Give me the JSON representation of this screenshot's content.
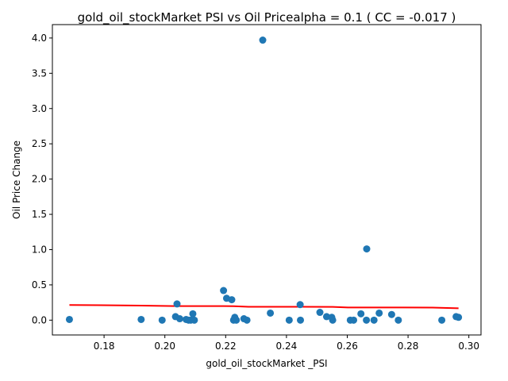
{
  "chart_data": {
    "type": "scatter",
    "title": "gold_oil_stockMarket  PSI vs Oil Pricealpha = 0.1 ( CC = -0.017 )",
    "xlabel": "gold_oil_stockMarket _PSI",
    "ylabel": "Oil Price Change",
    "xlim": [
      0.163,
      0.304
    ],
    "ylim": [
      -0.21,
      4.19
    ],
    "xticks": [
      0.18,
      0.2,
      0.22,
      0.24,
      0.26,
      0.28,
      0.3
    ],
    "xtick_labels": [
      "0.18",
      "0.20",
      "0.22",
      "0.24",
      "0.26",
      "0.28",
      "0.30"
    ],
    "yticks": [
      0.0,
      0.5,
      1.0,
      1.5,
      2.0,
      2.5,
      3.0,
      3.5,
      4.0
    ],
    "ytick_labels": [
      "0.0",
      "0.5",
      "1.0",
      "1.5",
      "2.0",
      "2.5",
      "3.0",
      "3.5",
      "4.0"
    ],
    "grid": false,
    "point_color": "#1f77b4",
    "fit_line_color": "#ff0000",
    "points": [
      {
        "x": 0.1686,
        "y": 0.01
      },
      {
        "x": 0.1922,
        "y": 0.01
      },
      {
        "x": 0.1991,
        "y": 0.0
      },
      {
        "x": 0.2035,
        "y": 0.05
      },
      {
        "x": 0.204,
        "y": 0.23
      },
      {
        "x": 0.2049,
        "y": 0.02
      },
      {
        "x": 0.207,
        "y": 0.01
      },
      {
        "x": 0.2078,
        "y": 0.0
      },
      {
        "x": 0.2085,
        "y": 0.0
      },
      {
        "x": 0.2092,
        "y": 0.09
      },
      {
        "x": 0.2097,
        "y": 0.0
      },
      {
        "x": 0.2193,
        "y": 0.42
      },
      {
        "x": 0.2203,
        "y": 0.31
      },
      {
        "x": 0.222,
        "y": 0.29
      },
      {
        "x": 0.2226,
        "y": 0.0
      },
      {
        "x": 0.223,
        "y": 0.04
      },
      {
        "x": 0.2235,
        "y": 0.0
      },
      {
        "x": 0.226,
        "y": 0.02
      },
      {
        "x": 0.227,
        "y": 0.0
      },
      {
        "x": 0.2322,
        "y": 3.97
      },
      {
        "x": 0.2347,
        "y": 0.1
      },
      {
        "x": 0.2409,
        "y": 0.0
      },
      {
        "x": 0.2445,
        "y": 0.22
      },
      {
        "x": 0.2446,
        "y": 0.0
      },
      {
        "x": 0.251,
        "y": 0.11
      },
      {
        "x": 0.2532,
        "y": 0.05
      },
      {
        "x": 0.2549,
        "y": 0.04
      },
      {
        "x": 0.2552,
        "y": 0.0
      },
      {
        "x": 0.261,
        "y": 0.0
      },
      {
        "x": 0.2621,
        "y": 0.0
      },
      {
        "x": 0.2645,
        "y": 0.09
      },
      {
        "x": 0.2664,
        "y": 1.01
      },
      {
        "x": 0.2663,
        "y": 0.0
      },
      {
        "x": 0.2688,
        "y": 0.0
      },
      {
        "x": 0.2705,
        "y": 0.1
      },
      {
        "x": 0.2746,
        "y": 0.08
      },
      {
        "x": 0.2768,
        "y": 0.0
      },
      {
        "x": 0.2911,
        "y": 0.0
      },
      {
        "x": 0.2958,
        "y": 0.05
      },
      {
        "x": 0.2966,
        "y": 0.04
      }
    ],
    "fit_line": [
      {
        "x": 0.1686,
        "y": 0.215
      },
      {
        "x": 0.1922,
        "y": 0.207
      },
      {
        "x": 0.2035,
        "y": 0.2
      },
      {
        "x": 0.2193,
        "y": 0.199
      },
      {
        "x": 0.2226,
        "y": 0.198
      },
      {
        "x": 0.2275,
        "y": 0.19
      },
      {
        "x": 0.2447,
        "y": 0.19
      },
      {
        "x": 0.2552,
        "y": 0.188
      },
      {
        "x": 0.2602,
        "y": 0.18
      },
      {
        "x": 0.276,
        "y": 0.18
      },
      {
        "x": 0.288,
        "y": 0.178
      },
      {
        "x": 0.2966,
        "y": 0.168
      }
    ]
  }
}
